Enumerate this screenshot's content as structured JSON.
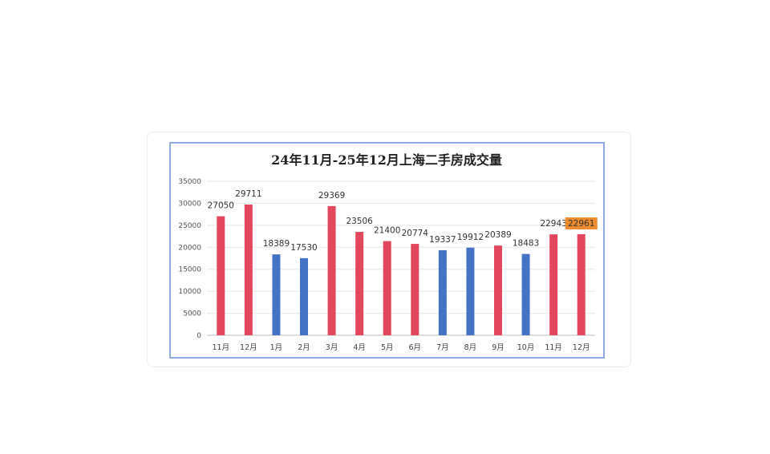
{
  "chart_data": {
    "type": "bar",
    "title": "24年11月-25年12月上海二手房成交量",
    "categories": [
      "11月",
      "12月",
      "1月",
      "2月",
      "3月",
      "4月",
      "5月",
      "6月",
      "7月",
      "8月",
      "9月",
      "10月",
      "11月",
      "12月"
    ],
    "values": [
      27050,
      29711,
      18389,
      17530,
      29369,
      23506,
      21400,
      20774,
      19337,
      19912,
      20389,
      18483,
      22943,
      22961
    ],
    "bar_colors": [
      "#e2475d",
      "#e2475d",
      "#4472c4",
      "#4472c4",
      "#e2475d",
      "#e2475d",
      "#e2475d",
      "#e2475d",
      "#4472c4",
      "#4472c4",
      "#e2475d",
      "#4472c4",
      "#e2475d",
      "#e2475d"
    ],
    "highlight_index": 13,
    "highlight_color": "#ed8b2f",
    "yticks": [
      0,
      5000,
      10000,
      15000,
      20000,
      25000,
      30000,
      35000
    ],
    "ylim": [
      0,
      35000
    ],
    "grid": true,
    "legend": false,
    "xlabel": "",
    "ylabel": ""
  },
  "colors": {
    "frame_border": "#8faadc",
    "gridline": "#e6e6e6",
    "axis": "#bfbfbf"
  }
}
